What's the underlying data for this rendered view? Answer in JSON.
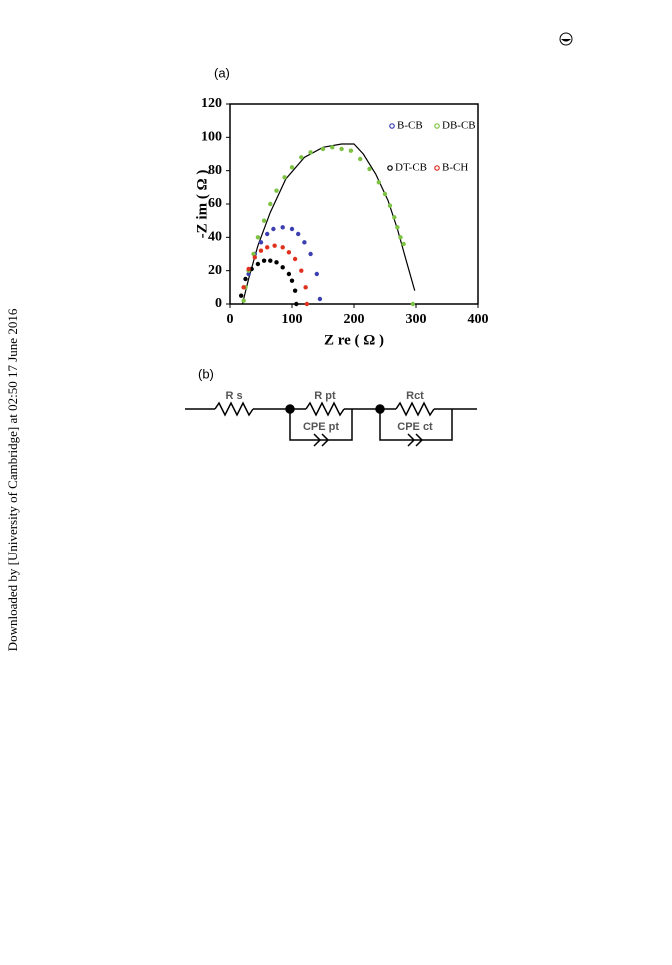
{
  "side_text": "Downloaded by [University of Cambridge] at 02:50 17 June 2016",
  "panel_a": "(a)",
  "panel_b": "(b)",
  "chart_data": {
    "type": "scatter",
    "xlabel": "Z re ( Ω )",
    "ylabel": "-Z im ( Ω )",
    "xlim": [
      0,
      400
    ],
    "xticks": [
      0,
      100,
      200,
      300,
      400
    ],
    "ylim": [
      0,
      120
    ],
    "yticks": [
      0,
      20,
      40,
      60,
      80,
      100,
      120
    ],
    "series": [
      {
        "name": "B-CB",
        "color": "#3b3fb0",
        "x": [
          30,
          40,
          50,
          60,
          70,
          85,
          100,
          110,
          120,
          130,
          140,
          145
        ],
        "values": [
          18,
          30,
          37,
          42,
          45,
          46,
          45,
          42,
          37,
          30,
          18,
          3
        ]
      },
      {
        "name": "DB-CB",
        "color": "#7dc242",
        "x": [
          22,
          25,
          30,
          38,
          45,
          55,
          65,
          75,
          88,
          100,
          115,
          130,
          150,
          165,
          180,
          195,
          210,
          225,
          240,
          250,
          258,
          265,
          270,
          275,
          280,
          295
        ],
        "values": [
          2,
          10,
          20,
          30,
          40,
          50,
          60,
          68,
          76,
          82,
          88,
          91,
          93,
          94,
          93,
          92,
          87,
          81,
          73,
          66,
          59,
          52,
          46,
          40,
          36,
          0
        ]
      },
      {
        "name": "DT-CB",
        "color": "#000000",
        "x": [
          18,
          25,
          35,
          45,
          55,
          65,
          75,
          85,
          95,
          100,
          105,
          107
        ],
        "values": [
          5,
          15,
          21,
          24,
          26,
          26,
          25,
          22,
          18,
          14,
          8,
          0
        ]
      },
      {
        "name": "B-CH",
        "color": "#e0301e",
        "x": [
          22,
          30,
          40,
          50,
          60,
          72,
          85,
          95,
          105,
          115,
          122,
          124
        ],
        "values": [
          10,
          21,
          28,
          32,
          34,
          35,
          34,
          31,
          27,
          20,
          10,
          0
        ]
      }
    ],
    "fit": {
      "color": "#000000",
      "x": [
        20,
        30,
        45,
        65,
        90,
        120,
        150,
        180,
        200,
        215,
        235,
        255,
        270,
        285,
        298
      ],
      "values": [
        0,
        15,
        35,
        55,
        75,
        88,
        94,
        96,
        96,
        90,
        78,
        62,
        45,
        25,
        8
      ]
    }
  },
  "circuit": {
    "rs": "R s",
    "rpt": "R pt",
    "cpe_pt": "CPE pt",
    "rct": "Rct",
    "cpe_ct": "CPE ct"
  }
}
